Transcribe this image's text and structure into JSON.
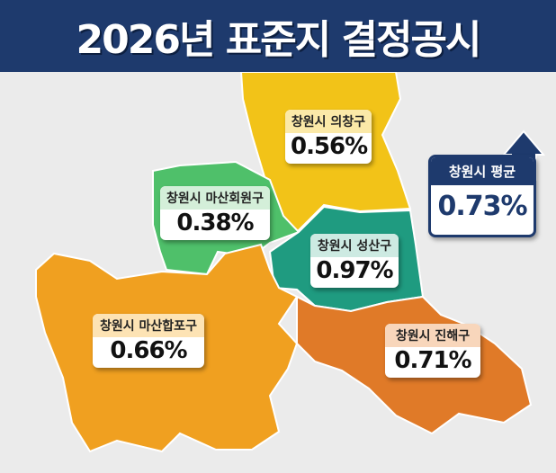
{
  "title": "2026년 표준지 결정공시",
  "colors": {
    "header": "#1e3a6d",
    "uichang": "#f2c318",
    "masanhoewon": "#4fc06a",
    "seongsan": "#1f9b80",
    "masanhappo": "#f0a020",
    "jinhae": "#e07a28"
  },
  "regions": [
    {
      "name": "창원시 의창구",
      "value": "0.56%"
    },
    {
      "name": "창원시 마산회원구",
      "value": "0.38%"
    },
    {
      "name": "창원시 성산구",
      "value": "0.97%"
    },
    {
      "name": "창원시 마산합포구",
      "value": "0.66%"
    },
    {
      "name": "창원시 진해구",
      "value": "0.71%"
    }
  ],
  "average": {
    "name": "창원시 평균",
    "value": "0.73%",
    "icon": "arrow-up-icon"
  }
}
